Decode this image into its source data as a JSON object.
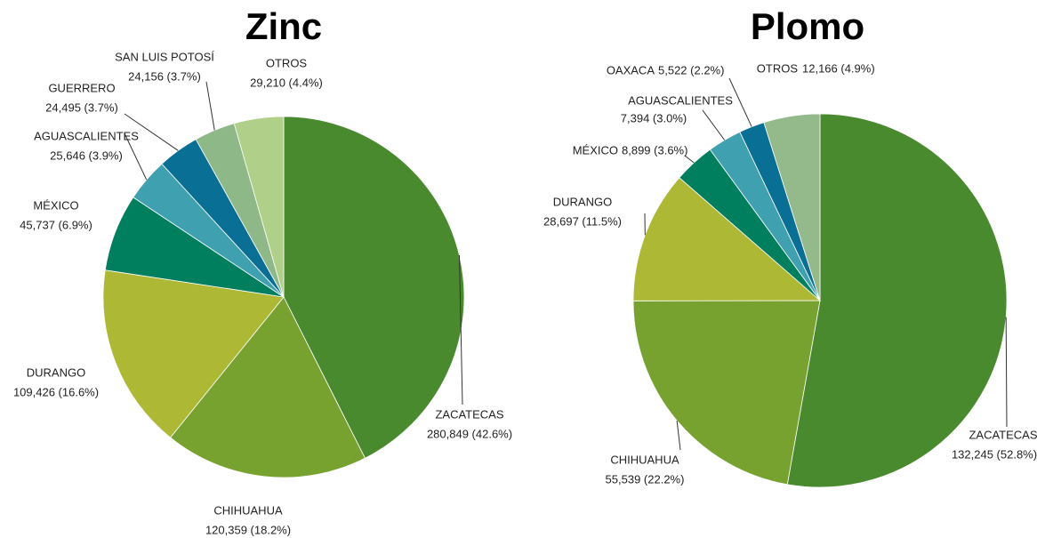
{
  "chart_data": [
    {
      "type": "pie",
      "title": "Zinc",
      "categories": [
        "ZACATECAS",
        "CHIHUAHUA",
        "DURANGO",
        "MÉXICO",
        "AGUASCALIENTES",
        "GUERRERO",
        "SAN LUIS POTOSÍ",
        "OTROS"
      ],
      "values": [
        280849,
        120359,
        109426,
        45737,
        25646,
        24495,
        24156,
        29210
      ],
      "value_labels": [
        "280,849 (42.6%)",
        "120,359  (18.2%)",
        "109,426  (16.6%)",
        "45,737 (6.9%)",
        "25,646 (3.9%)",
        "24,495 (3.7%)",
        "24,156 (3.7%)",
        "29,210 (4.4%)"
      ],
      "colors": [
        "#4a8a2f",
        "#78a22f",
        "#adb834",
        "#007f5f",
        "#3fa0b0",
        "#0a6f95",
        "#8fb888",
        "#b0d08a"
      ]
    },
    {
      "type": "pie",
      "title": "Plomo",
      "categories": [
        "ZACATECAS",
        "CHIHUAHUA",
        "DURANGO",
        "MÉXICO",
        "AGUASCALIENTES",
        "OAXACA",
        "OTROS"
      ],
      "values": [
        132245,
        55539,
        28697,
        8899,
        7394,
        5522,
        12166
      ],
      "value_labels": [
        "132,245 (52.8%)",
        "55,539 (22.2%)",
        "28,697 (11.5%)",
        "8,899 (3.6%)",
        "7,394  (3.0%)",
        "5,522 (2.2%)",
        "12,166  (4.9%)"
      ],
      "colors": [
        "#4a8a2f",
        "#78a22f",
        "#adb834",
        "#007f5f",
        "#3fa0b0",
        "#0a6f95",
        "#94b98a"
      ]
    }
  ]
}
